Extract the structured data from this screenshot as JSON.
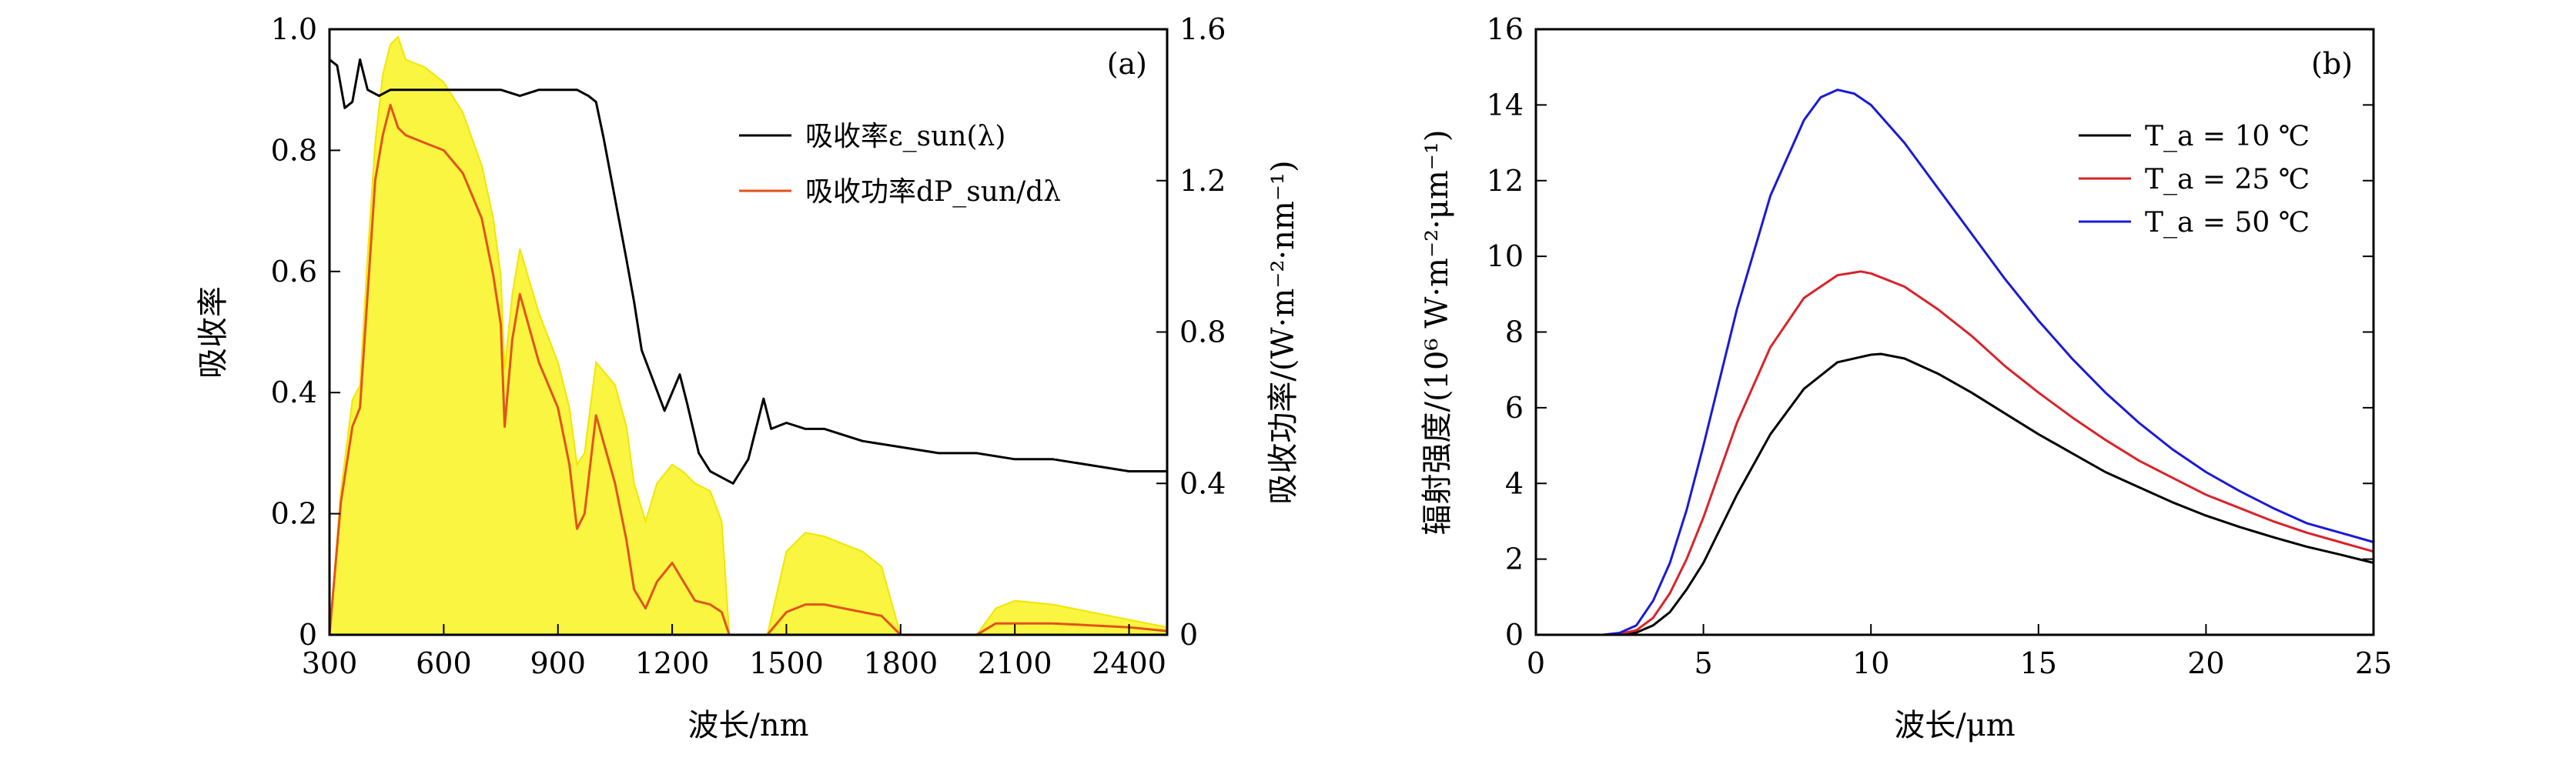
{
  "chart_data": [
    {
      "panel_label": "(a)",
      "type": "line",
      "xlabel": "波长/nm",
      "ylabel_left": "吸收率",
      "ylabel_right": "吸收功率/(W·m⁻²·nm⁻¹)",
      "xlim": [
        300,
        2500
      ],
      "ylim_left": [
        0,
        1.0
      ],
      "ylim_right": [
        0,
        1.6
      ],
      "xticks": [
        300,
        600,
        900,
        1200,
        1500,
        1800,
        2100,
        2400
      ],
      "xtick_labels": [
        "300",
        "600",
        "900",
        "1200",
        "1500",
        "1800",
        "2100",
        "2400"
      ],
      "yticks_left": [
        0,
        0.2,
        0.4,
        0.6,
        0.8,
        1.0
      ],
      "ytick_labels_left": [
        "0",
        "0.2",
        "0.4",
        "0.6",
        "0.8",
        "1.0"
      ],
      "yticks_right": [
        0,
        0.4,
        0.8,
        1.2,
        1.6
      ],
      "ytick_labels_right": [
        "0",
        "0.4",
        "0.8",
        "1.2",
        "1.6"
      ],
      "legend_position": "top-right",
      "legend": [
        "吸收率ε_sun(λ)",
        "吸收功率dP_sun/dλ"
      ],
      "series": [
        {
          "name": "吸收率ε_sun(λ)",
          "axis": "left",
          "color": "#000000",
          "x": [
            300,
            320,
            340,
            360,
            380,
            400,
            430,
            460,
            500,
            550,
            600,
            650,
            700,
            750,
            800,
            850,
            900,
            950,
            980,
            1000,
            1020,
            1050,
            1080,
            1100,
            1120,
            1150,
            1180,
            1200,
            1220,
            1240,
            1270,
            1300,
            1330,
            1360,
            1380,
            1400,
            1420,
            1440,
            1460,
            1500,
            1550,
            1600,
            1650,
            1700,
            1800,
            1900,
            2000,
            2100,
            2200,
            2300,
            2400,
            2500
          ],
          "y": [
            0.95,
            0.94,
            0.87,
            0.88,
            0.95,
            0.9,
            0.89,
            0.9,
            0.9,
            0.9,
            0.9,
            0.9,
            0.9,
            0.9,
            0.89,
            0.9,
            0.9,
            0.9,
            0.89,
            0.88,
            0.82,
            0.72,
            0.62,
            0.55,
            0.47,
            0.42,
            0.37,
            0.4,
            0.43,
            0.38,
            0.3,
            0.27,
            0.26,
            0.25,
            0.27,
            0.29,
            0.34,
            0.39,
            0.34,
            0.35,
            0.34,
            0.34,
            0.33,
            0.32,
            0.31,
            0.3,
            0.3,
            0.29,
            0.29,
            0.28,
            0.27,
            0.27
          ]
        },
        {
          "name": "吸收功率dP_sun/dλ",
          "axis": "right",
          "color": "#e2531b",
          "x": [
            300,
            330,
            360,
            380,
            400,
            420,
            440,
            460,
            480,
            500,
            550,
            600,
            650,
            700,
            730,
            750,
            760,
            780,
            800,
            850,
            900,
            930,
            950,
            970,
            1000,
            1050,
            1080,
            1100,
            1130,
            1160,
            1200,
            1230,
            1260,
            1300,
            1330,
            1350,
            1400,
            1450,
            1500,
            1550,
            1600,
            1650,
            1700,
            1750,
            1800,
            1850,
            1950,
            2000,
            2050,
            2100,
            2200,
            2300,
            2400,
            2500
          ],
          "y": [
            0.0,
            0.35,
            0.55,
            0.6,
            0.9,
            1.2,
            1.32,
            1.4,
            1.34,
            1.32,
            1.3,
            1.28,
            1.22,
            1.1,
            0.95,
            0.82,
            0.55,
            0.78,
            0.9,
            0.72,
            0.6,
            0.45,
            0.28,
            0.32,
            0.58,
            0.4,
            0.25,
            0.12,
            0.07,
            0.14,
            0.19,
            0.14,
            0.09,
            0.08,
            0.06,
            0.0,
            0.0,
            0.0,
            0.06,
            0.08,
            0.08,
            0.07,
            0.06,
            0.05,
            0.0,
            0.0,
            0.0,
            0.0,
            0.03,
            0.03,
            0.03,
            0.025,
            0.02,
            0.01
          ]
        },
        {
          "name": "",
          "axis": "right",
          "role": "shaded-area",
          "fill_color": "#f7f200",
          "x": [
            300,
            330,
            360,
            380,
            400,
            420,
            440,
            460,
            480,
            500,
            550,
            600,
            650,
            700,
            730,
            750,
            760,
            780,
            800,
            850,
            900,
            930,
            950,
            970,
            1000,
            1050,
            1080,
            1100,
            1130,
            1160,
            1200,
            1230,
            1260,
            1300,
            1330,
            1350,
            1400,
            1450,
            1500,
            1550,
            1600,
            1650,
            1700,
            1750,
            1800,
            1850,
            1950,
            2000,
            2050,
            2100,
            2200,
            2300,
            2400,
            2500
          ],
          "y": [
            0.0,
            0.38,
            0.62,
            0.66,
            1.0,
            1.3,
            1.48,
            1.56,
            1.58,
            1.52,
            1.5,
            1.46,
            1.38,
            1.24,
            1.1,
            0.95,
            0.7,
            0.9,
            1.02,
            0.85,
            0.72,
            0.6,
            0.45,
            0.48,
            0.72,
            0.66,
            0.55,
            0.4,
            0.3,
            0.4,
            0.45,
            0.43,
            0.4,
            0.38,
            0.3,
            0.0,
            0.0,
            0.0,
            0.22,
            0.27,
            0.26,
            0.24,
            0.22,
            0.18,
            0.0,
            0.0,
            0.0,
            0.0,
            0.07,
            0.09,
            0.08,
            0.06,
            0.04,
            0.02
          ]
        }
      ]
    },
    {
      "panel_label": "(b)",
      "type": "line",
      "xlabel": "波长/μm",
      "ylabel": "辐射强度/(10⁶ W·m⁻²·μm⁻¹)",
      "xlim": [
        0,
        25
      ],
      "ylim": [
        0,
        16
      ],
      "xticks": [
        0,
        5,
        10,
        15,
        20,
        25
      ],
      "xtick_labels": [
        "0",
        "5",
        "10",
        "15",
        "20",
        "25"
      ],
      "yticks": [
        0,
        2,
        4,
        6,
        8,
        10,
        12,
        14,
        16
      ],
      "ytick_labels": [
        "0",
        "2",
        "4",
        "6",
        "8",
        "10",
        "12",
        "14",
        "16"
      ],
      "legend_position": "top-right",
      "legend": [
        "T_a = 10 ℃",
        "T_a = 25 ℃",
        "T_a = 50 ℃"
      ],
      "series": [
        {
          "name": "T_a = 10 ℃",
          "color": "#000000",
          "x": [
            0,
            1,
            2,
            2.5,
            3,
            3.5,
            4,
            4.5,
            5,
            6,
            7,
            8,
            9,
            10,
            10.3,
            11,
            12,
            13,
            14,
            15,
            16,
            17,
            18,
            19,
            20,
            21,
            22,
            23,
            24,
            25
          ],
          "y": [
            0,
            0,
            0,
            0.01,
            0.06,
            0.25,
            0.6,
            1.2,
            1.9,
            3.7,
            5.3,
            6.5,
            7.2,
            7.4,
            7.42,
            7.3,
            6.9,
            6.4,
            5.85,
            5.3,
            4.8,
            4.3,
            3.9,
            3.5,
            3.15,
            2.85,
            2.58,
            2.33,
            2.12,
            1.9
          ]
        },
        {
          "name": "T_a = 25 ℃",
          "color": "#d9232a",
          "x": [
            0,
            1,
            2,
            2.5,
            3,
            3.5,
            4,
            4.5,
            5,
            6,
            7,
            8,
            9,
            9.7,
            10,
            11,
            12,
            13,
            14,
            15,
            16,
            17,
            18,
            19,
            20,
            21,
            22,
            23,
            24,
            25
          ],
          "y": [
            0,
            0,
            0,
            0.02,
            0.12,
            0.45,
            1.1,
            2.0,
            3.1,
            5.6,
            7.6,
            8.9,
            9.5,
            9.6,
            9.55,
            9.2,
            8.6,
            7.9,
            7.1,
            6.4,
            5.75,
            5.15,
            4.6,
            4.15,
            3.7,
            3.35,
            3.0,
            2.7,
            2.45,
            2.2
          ]
        },
        {
          "name": "T_a = 50 ℃",
          "color": "#1a1ad6",
          "x": [
            0,
            1,
            2,
            2.5,
            3,
            3.5,
            4,
            4.5,
            5,
            6,
            7,
            8,
            8.5,
            9,
            9.5,
            10,
            11,
            12,
            13,
            14,
            15,
            16,
            17,
            18,
            19,
            20,
            21,
            22,
            23,
            24,
            25
          ],
          "y": [
            0,
            0,
            0,
            0.05,
            0.25,
            0.9,
            1.9,
            3.3,
            5.0,
            8.6,
            11.6,
            13.6,
            14.2,
            14.4,
            14.3,
            14.0,
            13.0,
            11.8,
            10.6,
            9.4,
            8.3,
            7.3,
            6.4,
            5.6,
            4.9,
            4.3,
            3.8,
            3.35,
            2.95,
            2.7,
            2.45
          ]
        }
      ]
    }
  ]
}
